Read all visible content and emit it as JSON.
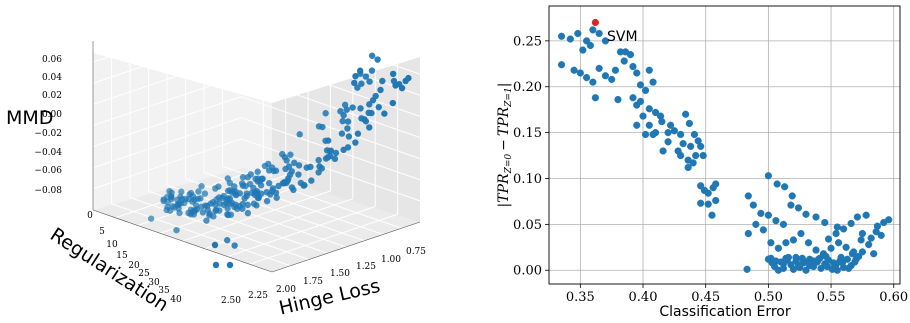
{
  "chart_data": [
    {
      "type": "scatter",
      "projection": "3d",
      "xlabel": "Hinge Loss",
      "ylabel": "Regularization",
      "zlabel": "MMD",
      "x_ticks": [
        "2.50",
        "2.25",
        "2.00",
        "1.75",
        "1.50",
        "1.25",
        "1.00",
        "0.75"
      ],
      "y_ticks": [
        "0",
        "5",
        "10",
        "15",
        "20",
        "25",
        "30",
        "35",
        "40"
      ],
      "z_ticks": [
        "0.06",
        "0.04",
        "0.02",
        "0.00",
        "−0.02",
        "−0.04",
        "−0.06",
        "−0.08"
      ],
      "xlim": [
        0.6,
        2.6
      ],
      "ylim": [
        0,
        40
      ],
      "zlim": [
        -0.09,
        0.07
      ],
      "color": "#1f77b4",
      "grid": true
    },
    {
      "type": "scatter",
      "xlabel": "Classification Error",
      "ylabel": "|TPR_{Z=0} − TPR_{Z=1}|",
      "ylabel_parts": {
        "bar": "|",
        "tpr": "TPR",
        "sub0": "Z=0",
        "minus": "−",
        "sub1": "Z=1"
      },
      "xlim": [
        0.325,
        0.605
      ],
      "ylim": [
        -0.015,
        0.288
      ],
      "x_ticks": [
        0.35,
        0.4,
        0.45,
        0.5,
        0.55,
        0.6
      ],
      "x_tick_labels": [
        "0.35",
        "0.40",
        "0.45",
        "0.50",
        "0.55",
        "0.60"
      ],
      "y_ticks": [
        0.0,
        0.05,
        0.1,
        0.15,
        0.2,
        0.25
      ],
      "y_tick_labels": [
        "0.00",
        "0.05",
        "0.10",
        "0.15",
        "0.20",
        "0.25"
      ],
      "grid": true,
      "series": [
        {
          "color": "#1f77b4",
          "points": [
            [
              0.335,
              0.255
            ],
            [
              0.342,
              0.252
            ],
            [
              0.348,
              0.258
            ],
            [
              0.355,
              0.25
            ],
            [
              0.36,
              0.262
            ],
            [
              0.365,
              0.258
            ],
            [
              0.37,
              0.25
            ],
            [
              0.358,
              0.245
            ],
            [
              0.352,
              0.24
            ],
            [
              0.335,
              0.224
            ],
            [
              0.345,
              0.218
            ],
            [
              0.35,
              0.215
            ],
            [
              0.355,
              0.21
            ],
            [
              0.36,
              0.205
            ],
            [
              0.365,
              0.22
            ],
            [
              0.37,
              0.212
            ],
            [
              0.375,
              0.208
            ],
            [
              0.378,
              0.218
            ],
            [
              0.382,
              0.238
            ],
            [
              0.386,
              0.238
            ],
            [
              0.39,
              0.235
            ],
            [
              0.385,
              0.228
            ],
            [
              0.392,
              0.222
            ],
            [
              0.395,
              0.215
            ],
            [
              0.398,
              0.202
            ],
            [
              0.402,
              0.196
            ],
            [
              0.405,
              0.218
            ],
            [
              0.408,
              0.205
            ],
            [
              0.362,
              0.188
            ],
            [
              0.38,
              0.186
            ],
            [
              0.392,
              0.188
            ],
            [
              0.398,
              0.184
            ],
            [
              0.405,
              0.176
            ],
            [
              0.41,
              0.172
            ],
            [
              0.4,
              0.168
            ],
            [
              0.395,
              0.158
            ],
            [
              0.405,
              0.158
            ],
            [
              0.41,
              0.15
            ],
            [
              0.415,
              0.162
            ],
            [
              0.42,
              0.15
            ],
            [
              0.425,
              0.152
            ],
            [
              0.43,
              0.148
            ],
            [
              0.42,
              0.14
            ],
            [
              0.428,
              0.13
            ],
            [
              0.432,
              0.138
            ],
            [
              0.438,
              0.135
            ],
            [
              0.442,
              0.125
            ],
            [
              0.446,
              0.135
            ],
            [
              0.448,
              0.125
            ],
            [
              0.436,
              0.12
            ],
            [
              0.43,
              0.125
            ],
            [
              0.436,
              0.112
            ],
            [
              0.416,
              0.13
            ],
            [
              0.422,
              0.158
            ],
            [
              0.414,
              0.168
            ],
            [
              0.395,
              0.18
            ],
            [
              0.402,
              0.148
            ],
            [
              0.408,
              0.148
            ],
            [
              0.434,
              0.17
            ],
            [
              0.437,
              0.16
            ],
            [
              0.441,
              0.148
            ],
            [
              0.444,
              0.141
            ],
            [
              0.44,
              0.117
            ],
            [
              0.446,
              0.092
            ],
            [
              0.449,
              0.087
            ],
            [
              0.452,
              0.084
            ],
            [
              0.456,
              0.09
            ],
            [
              0.458,
              0.094
            ],
            [
              0.446,
              0.073
            ],
            [
              0.452,
              0.072
            ],
            [
              0.458,
              0.076
            ],
            [
              0.455,
              0.06
            ],
            [
              0.5,
              0.103
            ],
            [
              0.507,
              0.094
            ],
            [
              0.513,
              0.091
            ],
            [
              0.519,
              0.081
            ],
            [
              0.484,
              0.081
            ],
            [
              0.488,
              0.071
            ],
            [
              0.494,
              0.062
            ],
            [
              0.5,
              0.06
            ],
            [
              0.506,
              0.054
            ],
            [
              0.512,
              0.05
            ],
            [
              0.518,
              0.071
            ],
            [
              0.524,
              0.068
            ],
            [
              0.53,
              0.061
            ],
            [
              0.538,
              0.058
            ],
            [
              0.545,
              0.052
            ],
            [
              0.484,
              0.04
            ],
            [
              0.49,
              0.05
            ],
            [
              0.496,
              0.044
            ],
            [
              0.502,
              0.03
            ],
            [
              0.508,
              0.024
            ],
            [
              0.514,
              0.03
            ],
            [
              0.52,
              0.033
            ],
            [
              0.526,
              0.04
            ],
            [
              0.532,
              0.03
            ],
            [
              0.538,
              0.022
            ],
            [
              0.544,
              0.018
            ],
            [
              0.55,
              0.024
            ],
            [
              0.556,
              0.03
            ],
            [
              0.562,
              0.025
            ],
            [
              0.568,
              0.02
            ],
            [
              0.574,
              0.033
            ],
            [
              0.58,
              0.028
            ],
            [
              0.586,
              0.042
            ],
            [
              0.592,
              0.052
            ],
            [
              0.596,
              0.055
            ],
            [
              0.587,
              0.048
            ],
            [
              0.578,
              0.06
            ],
            [
              0.571,
              0.058
            ],
            [
              0.566,
              0.051
            ],
            [
              0.56,
              0.045
            ],
            [
              0.555,
              0.047
            ],
            [
              0.575,
              0.04
            ],
            [
              0.582,
              0.035
            ],
            [
              0.59,
              0.038
            ],
            [
              0.548,
              0.034
            ],
            [
              0.554,
              0.04
            ],
            [
              0.584,
              0.018
            ],
            [
              0.483,
              0.001
            ],
            [
              0.5,
              0.012
            ],
            [
              0.503,
              0.008
            ],
            [
              0.505,
              0.004
            ],
            [
              0.508,
              0.0
            ],
            [
              0.51,
              0.009
            ],
            [
              0.512,
              0.002
            ],
            [
              0.515,
              0.011
            ],
            [
              0.518,
              0.006
            ],
            [
              0.52,
              0.001
            ],
            [
              0.522,
              0.01
            ],
            [
              0.525,
              0.003
            ],
            [
              0.528,
              0.008
            ],
            [
              0.53,
              0.0
            ],
            [
              0.533,
              0.012
            ],
            [
              0.536,
              0.004
            ],
            [
              0.539,
              0.009
            ],
            [
              0.542,
              0.002
            ],
            [
              0.545,
              0.007
            ],
            [
              0.548,
              0.011
            ],
            [
              0.551,
              0.001
            ],
            [
              0.554,
              0.006
            ],
            [
              0.557,
              0.01
            ],
            [
              0.56,
              0.003
            ],
            [
              0.563,
              0.012
            ],
            [
              0.566,
              0.005
            ],
            [
              0.569,
              0.009
            ],
            [
              0.572,
              0.015
            ],
            [
              0.575,
              0.02
            ],
            [
              0.502,
              0.013
            ],
            [
              0.506,
              0.01
            ],
            [
              0.514,
              0.013
            ],
            [
              0.522,
              0.014
            ],
            [
              0.53,
              0.009
            ],
            [
              0.54,
              0.012
            ],
            [
              0.546,
              0.015
            ],
            [
              0.552,
              0.008
            ],
            [
              0.558,
              0.014
            ],
            [
              0.564,
              0.002
            ],
            [
              0.57,
              0.012
            ],
            [
              0.555,
              0.0
            ],
            [
              0.512,
              0.007
            ],
            [
              0.524,
              0.006
            ],
            [
              0.536,
              0.01
            ],
            [
              0.516,
              0.014
            ],
            [
              0.527,
              0.013
            ],
            [
              0.533,
              0.005
            ],
            [
              0.541,
              0.013
            ],
            [
              0.547,
              0.004
            ],
            [
              0.559,
              0.008
            ],
            [
              0.567,
              0.018
            ]
          ]
        },
        {
          "name": "SVM",
          "color": "#d62728",
          "points": [
            [
              0.362,
              0.27
            ]
          ]
        }
      ],
      "annotations": [
        {
          "text": "SVM",
          "x": 0.362,
          "y": 0.27
        }
      ]
    }
  ]
}
